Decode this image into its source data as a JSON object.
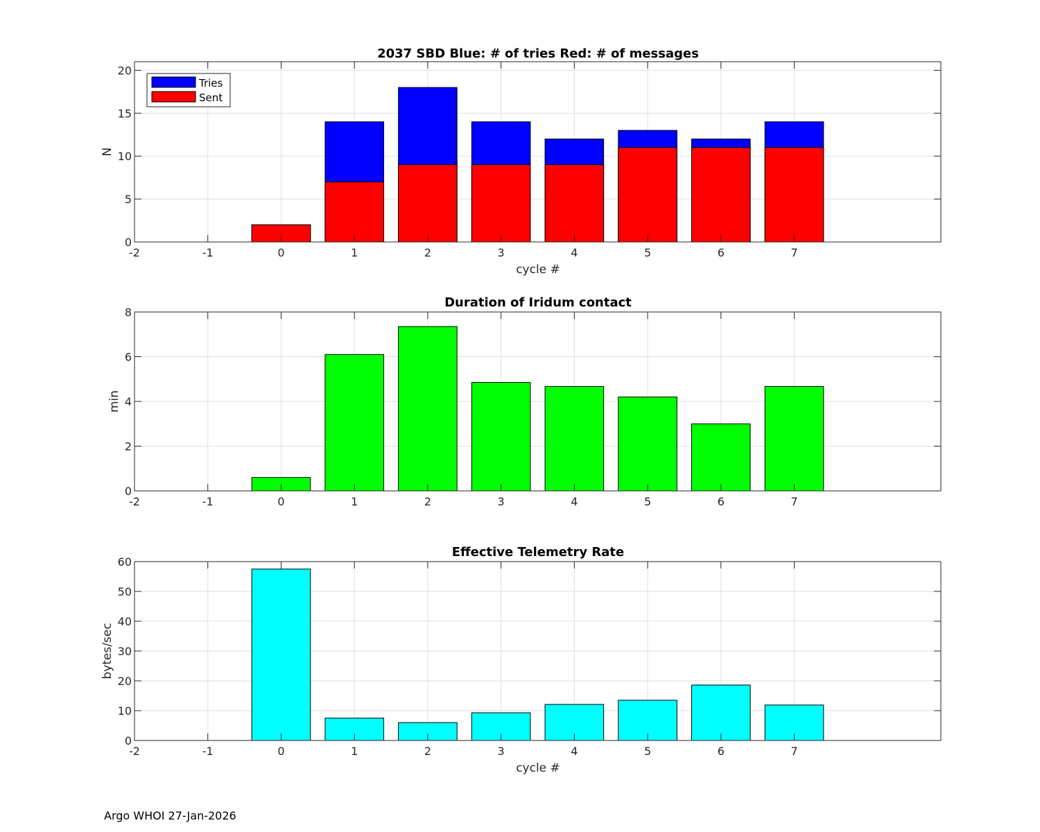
{
  "chart_data": [
    {
      "type": "bar",
      "stacked": "overlay",
      "title": "2037 SBD  Blue: # of tries   Red: # of messages",
      "xlabel": "cycle #",
      "ylabel": "N",
      "xlim": [
        -2,
        9
      ],
      "ylim": [
        0,
        21
      ],
      "xticks": [
        "-2",
        "-1",
        "0",
        "1",
        "2",
        "3",
        "4",
        "5",
        "6",
        "7"
      ],
      "yticks": [
        "0",
        "5",
        "10",
        "15",
        "20"
      ],
      "x": [
        0,
        1,
        2,
        3,
        4,
        5,
        6,
        7
      ],
      "series": [
        {
          "name": "Tries",
          "color": "#0000ff",
          "values": [
            2,
            14,
            18,
            14,
            12,
            13,
            12,
            14
          ]
        },
        {
          "name": "Sent",
          "color": "#ff0000",
          "values": [
            2,
            7,
            9,
            9,
            9,
            11,
            11,
            11
          ]
        }
      ],
      "legend": {
        "position": "top-left",
        "entries": [
          "Tries",
          "Sent"
        ]
      },
      "grid": true
    },
    {
      "type": "bar",
      "title": "Duration of Iridum contact",
      "xlabel": "",
      "ylabel": "min",
      "xlim": [
        -2,
        9
      ],
      "ylim": [
        0,
        8
      ],
      "xticks": [
        "-2",
        "-1",
        "0",
        "1",
        "2",
        "3",
        "4",
        "5",
        "6",
        "7"
      ],
      "yticks": [
        "0",
        "2",
        "4",
        "6",
        "8"
      ],
      "x": [
        0,
        1,
        2,
        3,
        4,
        5,
        6,
        7
      ],
      "series": [
        {
          "name": "Duration",
          "color": "#00ff00",
          "values": [
            0.6,
            6.1,
            7.35,
            4.85,
            4.67,
            4.2,
            3.0,
            4.67
          ]
        }
      ],
      "grid": true
    },
    {
      "type": "bar",
      "title": "Effective Telemetry Rate",
      "xlabel": "cycle #",
      "ylabel": "bytes/sec",
      "xlim": [
        -2,
        9
      ],
      "ylim": [
        0,
        60
      ],
      "xticks": [
        "-2",
        "-1",
        "0",
        "1",
        "2",
        "3",
        "4",
        "5",
        "6",
        "7"
      ],
      "yticks": [
        "0",
        "10",
        "20",
        "30",
        "40",
        "50",
        "60"
      ],
      "x": [
        0,
        1,
        2,
        3,
        4,
        5,
        6,
        7
      ],
      "series": [
        {
          "name": "Rate",
          "color": "#00ffff",
          "values": [
            57.5,
            7.5,
            6.0,
            9.3,
            12.1,
            13.5,
            18.6,
            11.9
          ]
        }
      ],
      "grid": true
    }
  ],
  "footer": "Argo WHOI 27-Jan-2026"
}
